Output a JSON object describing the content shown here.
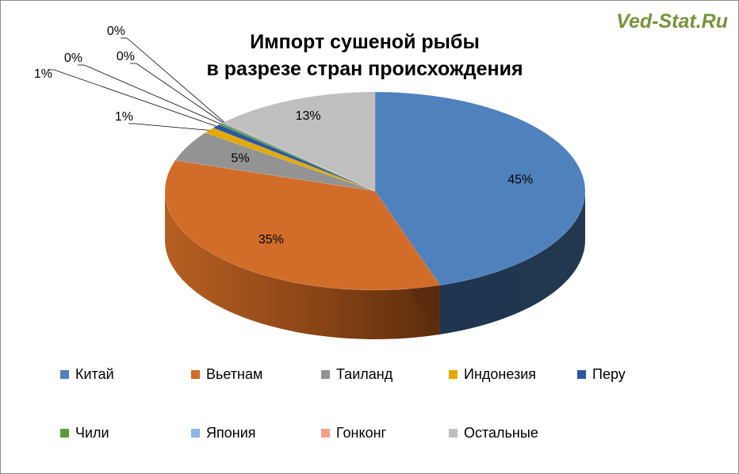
{
  "watermark": "Ved-Stat.Ru",
  "chart_data": {
    "type": "pie",
    "style": "3d",
    "title_lines": [
      "Импорт сушеной рыбы",
      "в разрезе стран происхождения"
    ],
    "legend_position": "bottom",
    "slices": [
      {
        "name": "Китай",
        "value": 45,
        "label": "45%",
        "color": "#4f81bd"
      },
      {
        "name": "Вьетнам",
        "value": 35,
        "label": "35%",
        "color": "#d16c29"
      },
      {
        "name": "Таиланд",
        "value": 5,
        "label": "5%",
        "color": "#939393"
      },
      {
        "name": "Индонезия",
        "value": 1,
        "label": "1%",
        "color": "#e3a901"
      },
      {
        "name": "Перу",
        "value": 0.7,
        "label": "1%",
        "color": "#2d56a0"
      },
      {
        "name": "Чили",
        "value": 0.3,
        "label": "0%",
        "color": "#5c9b3c"
      },
      {
        "name": "Япония",
        "value": 0.2,
        "label": "0%",
        "color": "#8fb4e3"
      },
      {
        "name": "Гонконг",
        "value": 0.1,
        "label": "0%",
        "color": "#f2a383"
      },
      {
        "name": "Остальные",
        "value": 12.7,
        "label": "13%",
        "color": "#bfbfbf"
      }
    ]
  }
}
